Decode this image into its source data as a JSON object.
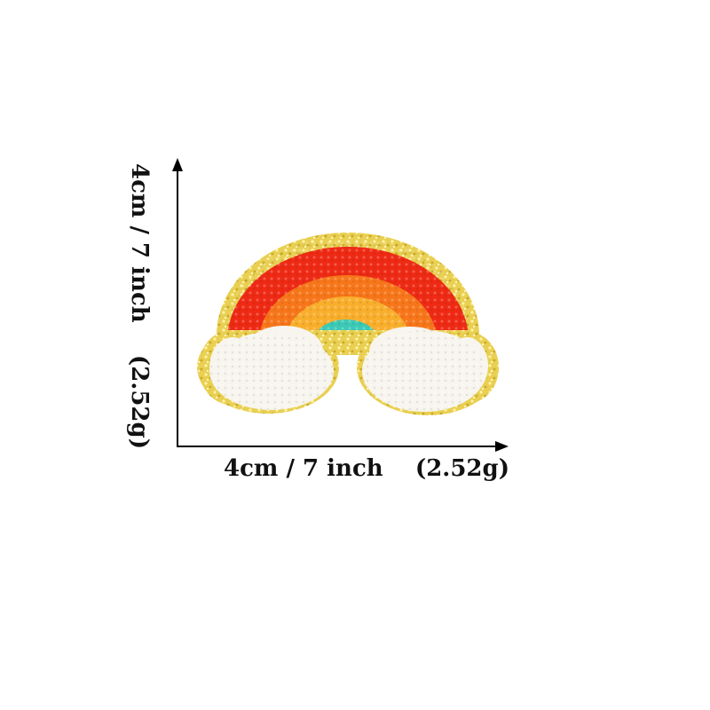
{
  "measurement": {
    "horizontal_label": "4cm / 7 inch    (2.52g)",
    "vertical_label": "4cm / 7 inch    (2.52g)"
  },
  "product": {
    "colors": {
      "glitter_border": "#e9cf52",
      "red": "#ee2a14",
      "orange": "#f7761a",
      "yellow_orange": "#f9ae2c",
      "teal": "#3cc9b5",
      "cloud": "#f7f5ee",
      "line": "#000000"
    }
  }
}
